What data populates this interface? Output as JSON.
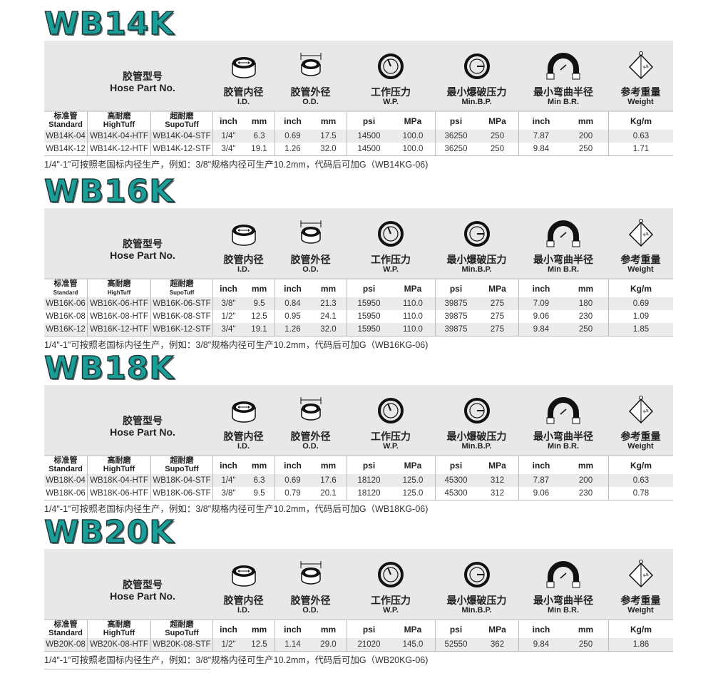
{
  "headers": {
    "part_zh": "胶管型号",
    "part_en": "Hose Part No.",
    "id_zh": "胶管内径",
    "id_en": "I.D.",
    "od_zh": "胶管外径",
    "od_en": "O.D.",
    "wp_zh": "工作压力",
    "wp_en": "W.P.",
    "bp_zh": "最小爆破压力",
    "bp_en": "Min.B.P.",
    "br_zh": "最小弯曲半径",
    "br_en": "Min B.R.",
    "wt_zh": "参考重量",
    "wt_en": "Weight",
    "sub": [
      [
        "标准管",
        "Standard"
      ],
      [
        "高耐磨",
        "HighTuff"
      ],
      [
        "超耐磨",
        "SupoTuff"
      ]
    ],
    "units": [
      "inch",
      "mm",
      "inch",
      "mm",
      "psi",
      "MPa",
      "psi",
      "MPa",
      "inch",
      "mm",
      "Kg/m"
    ],
    "weight_icon_text": "Kg"
  },
  "accent": "#1b9e98",
  "sections": [
    {
      "title": "WB14K",
      "rows": [
        [
          "WB14K-04",
          "WB14K-04-HTF",
          "WB14K-04-STF",
          "1/4\"",
          "6.3",
          "0.69",
          "17.5",
          "14500",
          "100.0",
          "36250",
          "250",
          "7.87",
          "200",
          "0.63"
        ],
        [
          "WB14K-12",
          "WB14K-12-HTF",
          "WB14K-12-STF",
          "3/4\"",
          "19.1",
          "1.26",
          "32.0",
          "14500",
          "100.0",
          "36250",
          "250",
          "9.84",
          "250",
          "1.71"
        ]
      ],
      "note": "1/4\"-1\"可按照老国标内径生产，例如：3/8\"规格内径可生产10.2mm，代码后可加G（WB14KG-06)"
    },
    {
      "title": "WB16K",
      "rows": [
        [
          "WB16K-06",
          "WB16K-06-HTF",
          "WB16K-06-STF",
          "3/8\"",
          "9.5",
          "0.84",
          "21.3",
          "15950",
          "110.0",
          "39875",
          "275",
          "7.09",
          "180",
          "0.69"
        ],
        [
          "WB16K-08",
          "WB16K-08-HTF",
          "WB16K-08-STF",
          "1/2\"",
          "12.5",
          "0.95",
          "24.1",
          "15950",
          "110.0",
          "39875",
          "275",
          "9.06",
          "230",
          "1.09"
        ],
        [
          "WB16K-12",
          "WB16K-12-HTF",
          "WB16K-12-STF",
          "3/4\"",
          "19.1",
          "1.26",
          "32.0",
          "15950",
          "110.0",
          "39875",
          "275",
          "9.84",
          "250",
          "1.85"
        ]
      ],
      "note": "1/4\"-1\"可按照老国标内径生产，例如：3/8\"规格内径可生产10.2mm，代码后可加G（WB16KG-06)"
    },
    {
      "title": "WB18K",
      "rows": [
        [
          "WB18K-04",
          "WB18K-04-HTF",
          "WB18K-04-STF",
          "1/4\"",
          "6.3",
          "0.69",
          "17.6",
          "18120",
          "125.0",
          "45300",
          "312",
          "7.87",
          "200",
          "0.63"
        ],
        [
          "WB18K-06",
          "WB18K-06-HTF",
          "WB18K-06-STF",
          "3/8\"",
          "9.5",
          "0.79",
          "20.1",
          "18120",
          "125.0",
          "45300",
          "312",
          "9.06",
          "230",
          "0.78"
        ]
      ],
      "note": "1/4\"-1\"可按照老国标内径生产，例如：3/8\"规格内径可生产10.2mm，代码后可加G（WB18KG-06)"
    },
    {
      "title": "WB20K",
      "rows": [
        [
          "WB20K-08",
          "WB20K-08-HTF",
          "WB20K-08-STF",
          "1/2\"",
          "12.5",
          "1.14",
          "29.0",
          "21020",
          "145.0",
          "52550",
          "362",
          "9.84",
          "250",
          "1.86"
        ]
      ],
      "note": "1/4\"-1\"可按照老国标内径生产，例如：3/8\"规格内径可生产10.2mm，代码后可加G（WB20KG-06)"
    }
  ]
}
